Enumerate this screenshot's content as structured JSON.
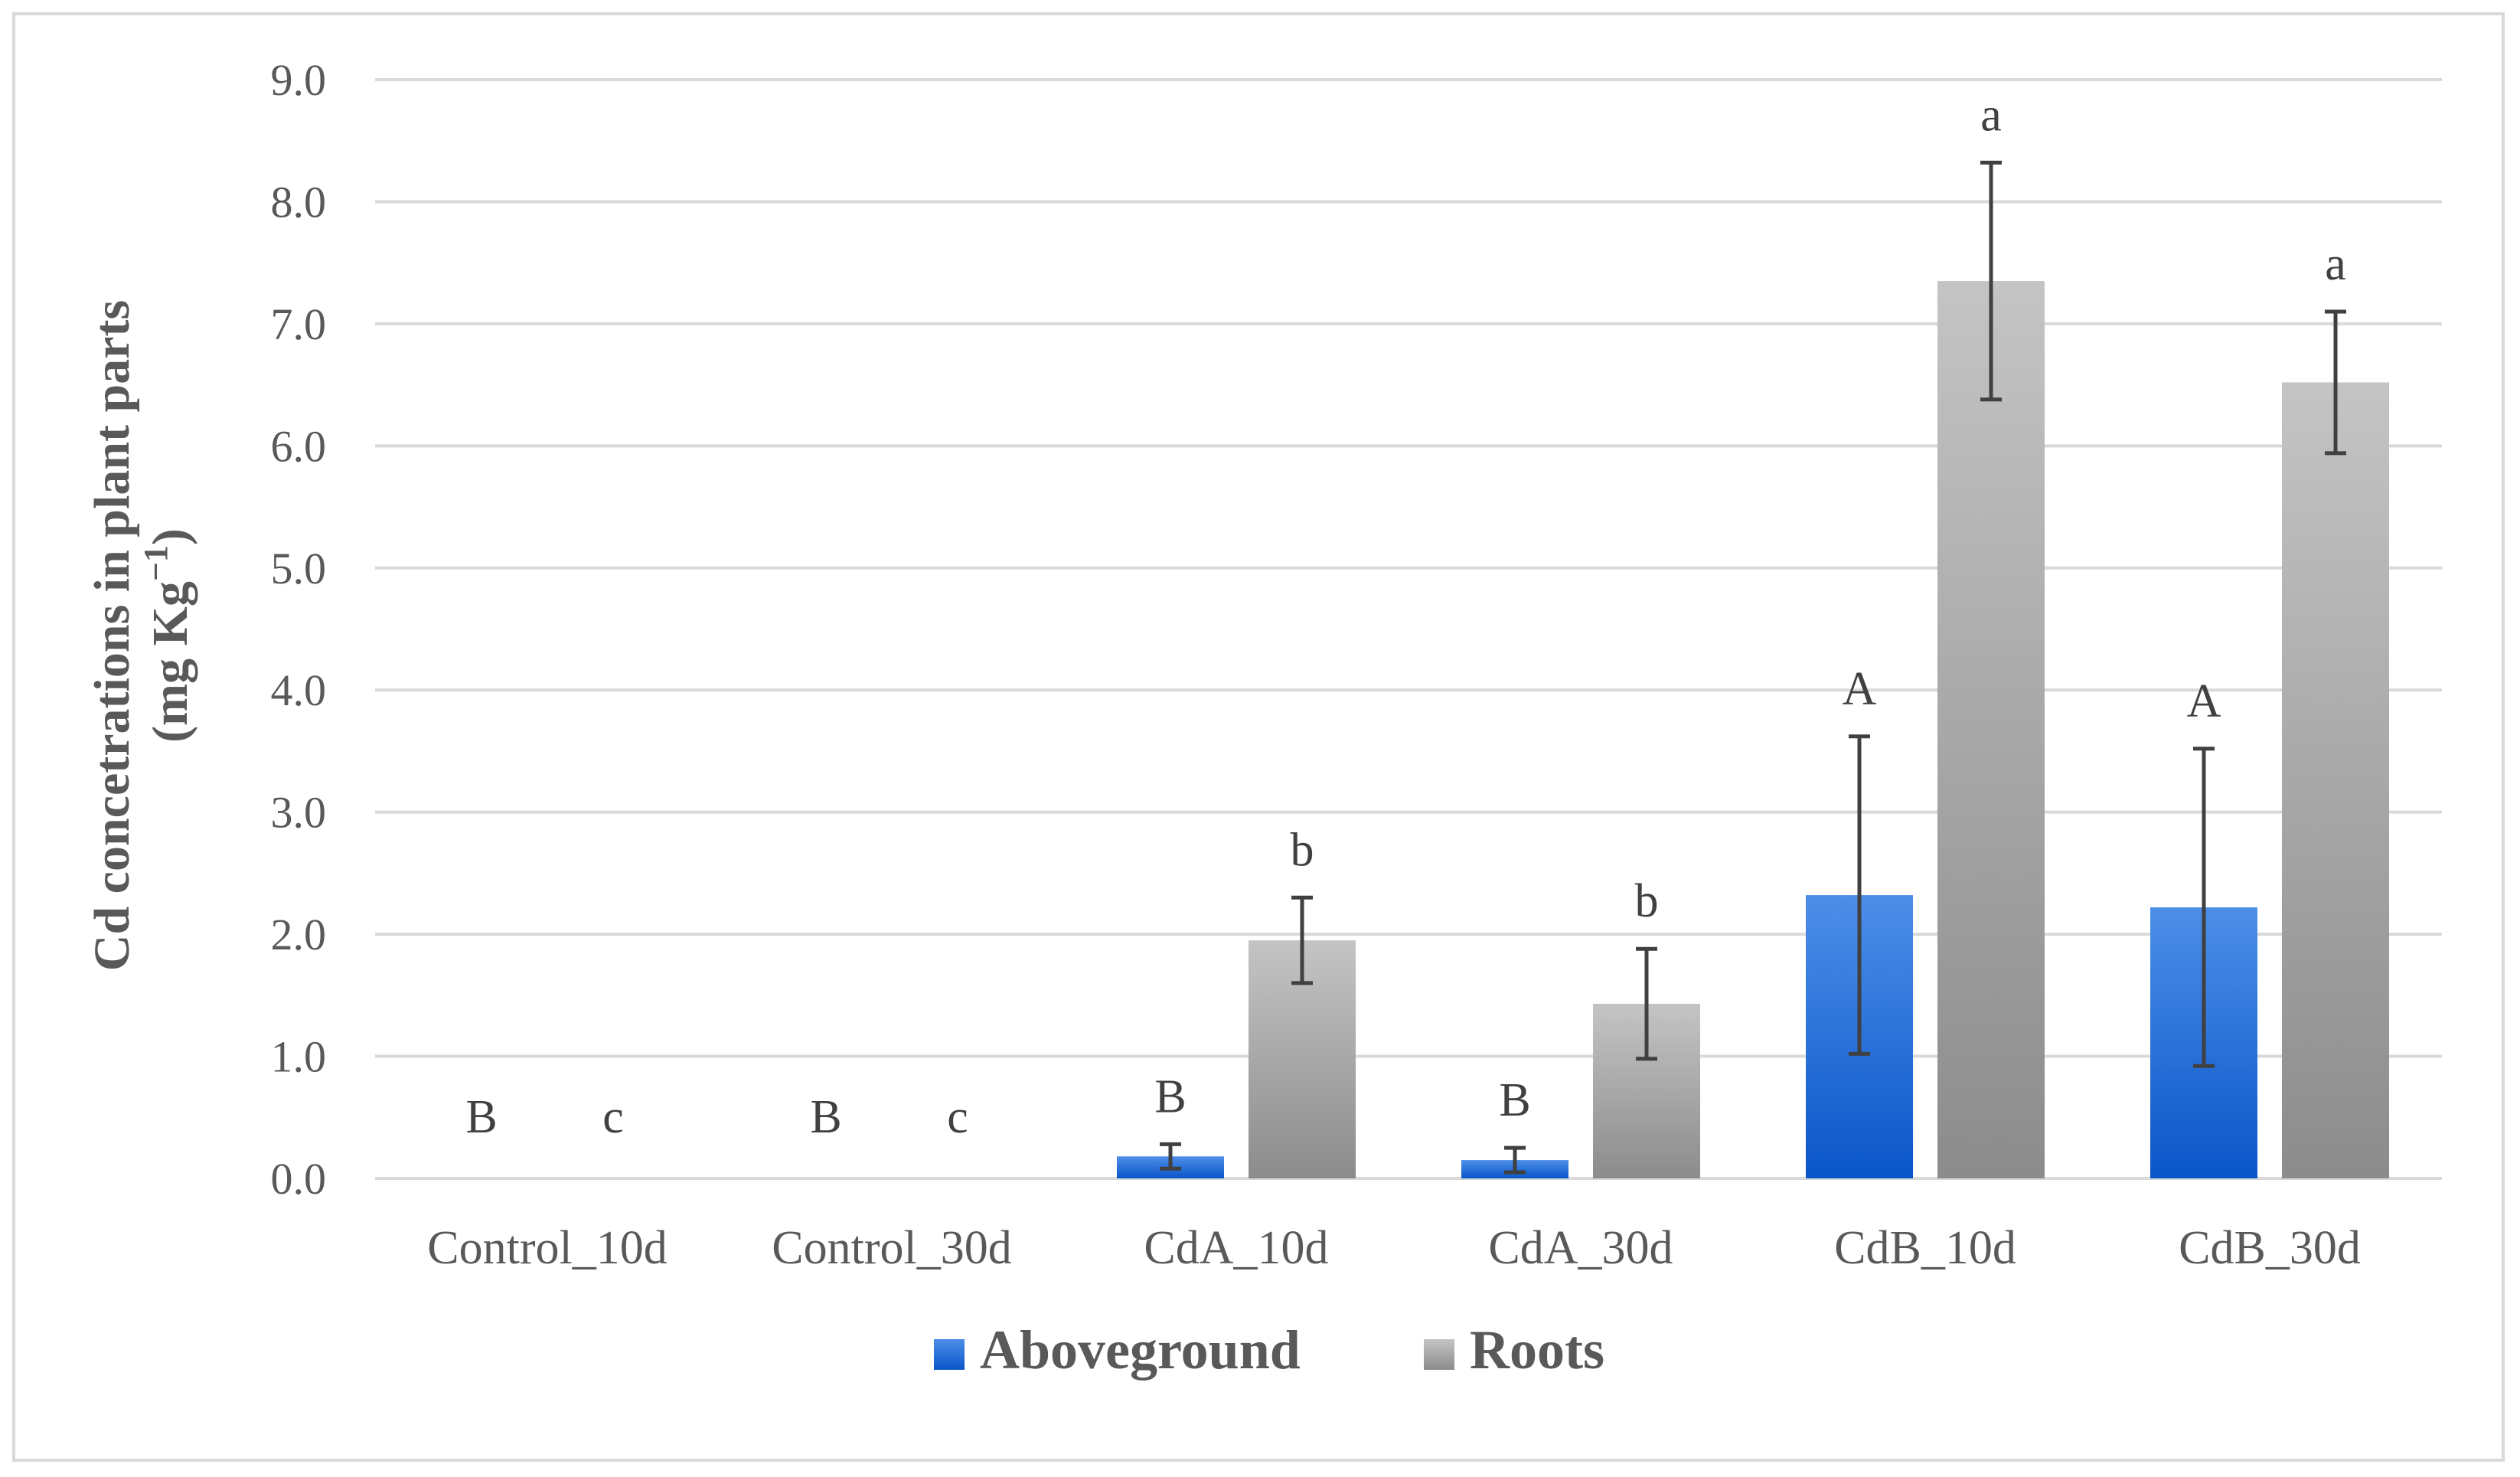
{
  "chart_data": {
    "type": "bar",
    "title": "",
    "xlabel": "",
    "ylabel": {
      "line1": "Cd concetrations in plant parts",
      "line2_prefix": "(mg Kg",
      "line2_sup": "−1",
      "line2_suffix": ")"
    },
    "ylim": [
      0,
      9
    ],
    "yticks": [
      "0.0",
      "1.0",
      "2.0",
      "3.0",
      "4.0",
      "5.0",
      "6.0",
      "7.0",
      "8.0",
      "9.0"
    ],
    "grid": true,
    "legend_position": "bottom",
    "categories": [
      "Control_10d",
      "Control_30d",
      "CdA_10d",
      "CdA_30d",
      "CdB_10d",
      "CdB_30d"
    ],
    "series": [
      {
        "name": "Aboveground",
        "color": "#1f66d1",
        "values": [
          0,
          0,
          0.18,
          0.15,
          2.32,
          2.22
        ],
        "error": [
          0,
          0,
          0.1,
          0.1,
          1.3,
          1.3
        ],
        "letters": [
          "B",
          "B",
          "B",
          "B",
          "A",
          "A"
        ]
      },
      {
        "name": "Roots",
        "color": "#a6a6a6",
        "values": [
          0,
          0,
          1.95,
          1.43,
          7.35,
          6.52
        ],
        "error": [
          0,
          0,
          0.35,
          0.45,
          0.97,
          0.58
        ],
        "letters": [
          "c",
          "c",
          "b",
          "b",
          "a",
          "a"
        ]
      }
    ]
  }
}
